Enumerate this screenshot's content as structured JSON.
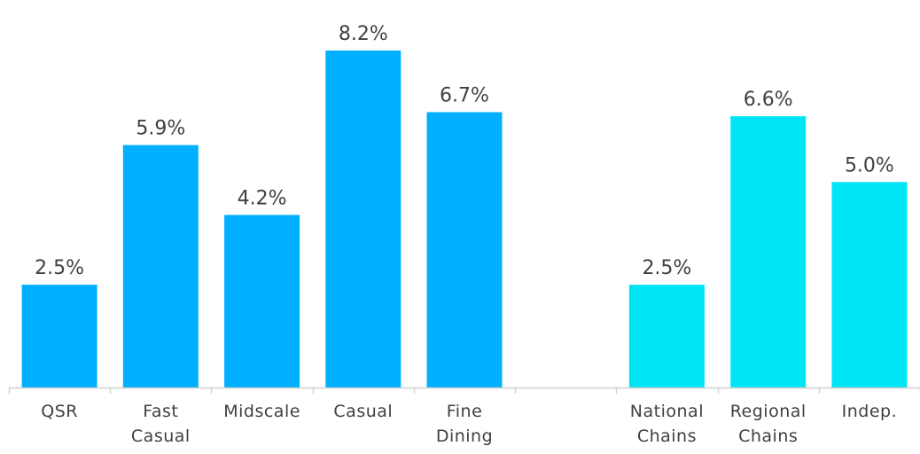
{
  "chart_data": {
    "type": "bar",
    "title": "",
    "xlabel": "",
    "ylabel": "",
    "ylim": [
      0,
      8.2
    ],
    "grid": false,
    "legend": "none",
    "categories": [
      "QSR",
      "Fast Casual",
      "Midscale",
      "Casual",
      "Fine Dining",
      "",
      "National Chains",
      "Regional Chains",
      "Indep."
    ],
    "category_lines": [
      [
        "QSR"
      ],
      [
        "Fast",
        "Casual"
      ],
      [
        "Midscale"
      ],
      [
        "Casual"
      ],
      [
        "Fine",
        "Dining"
      ],
      [],
      [
        "National",
        "Chains"
      ],
      [
        "Regional",
        "Chains"
      ],
      [
        "Indep."
      ]
    ],
    "values": [
      2.5,
      5.9,
      4.2,
      8.2,
      6.7,
      null,
      2.5,
      6.6,
      5.0
    ],
    "data_labels": [
      "2.5%",
      "5.9%",
      "4.2%",
      "8.2%",
      "6.7%",
      "",
      "2.5%",
      "6.6%",
      "5.0%"
    ],
    "bar_colors": [
      "#00b0ff",
      "#00b0ff",
      "#00b0ff",
      "#00b0ff",
      "#00b0ff",
      "",
      "#00e5f5",
      "#00e5f5",
      "#00e5f5"
    ],
    "colors": {
      "segment_group": "#00b0ff",
      "ownership_group": "#00e5f5",
      "axis": "#d0d0d0",
      "text": "#404040"
    }
  }
}
